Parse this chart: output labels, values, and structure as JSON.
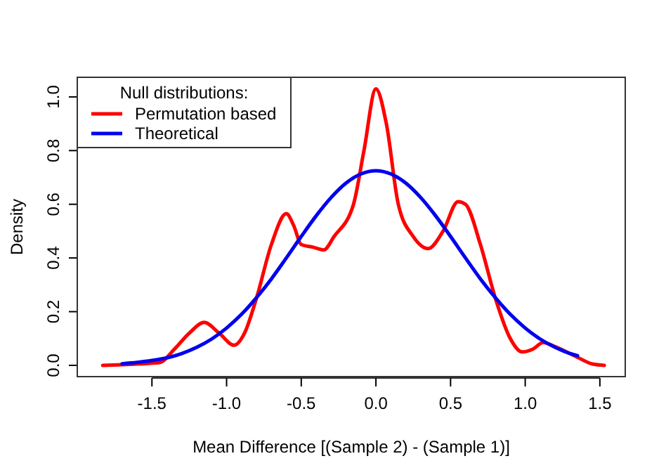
{
  "chart_data": {
    "type": "line",
    "xlabel": "Mean Difference [(Sample 2) - (Sample 1)]",
    "ylabel": "Density",
    "legend_title": "Null distributions:",
    "legend": "top left",
    "grid": false,
    "line_style": "solid",
    "xlim": [
      -2.0,
      1.67
    ],
    "ylim": [
      -0.042,
      1.073
    ],
    "xticks": [
      {
        "value": -1.5,
        "label": "-1.5"
      },
      {
        "value": -1.0,
        "label": "-1.0"
      },
      {
        "value": -0.5,
        "label": "-0.5"
      },
      {
        "value": 0,
        "label": "0.0"
      },
      {
        "value": 0.5,
        "label": "0.5"
      },
      {
        "value": 1.0,
        "label": "1.0"
      },
      {
        "value": 1.5,
        "label": "1.5"
      }
    ],
    "yticks": [
      {
        "value": 0,
        "label": "0.0"
      },
      {
        "value": 0.2,
        "label": "0.2"
      },
      {
        "value": 0.4,
        "label": "0.4"
      },
      {
        "value": 0.6,
        "label": "0.6"
      },
      {
        "value": 0.8,
        "label": "0.8"
      },
      {
        "value": 1.0,
        "label": "1.0"
      }
    ],
    "series": [
      {
        "name": "Permutation based",
        "color": "#ff0000",
        "x": [
          -1.83,
          -1.6,
          -1.45,
          -1.35,
          -1.25,
          -1.15,
          -1.05,
          -0.95,
          -0.88,
          -0.8,
          -0.7,
          -0.6,
          -0.55,
          -0.5,
          -0.42,
          -0.35,
          -0.28,
          -0.15,
          -0.08,
          0,
          0.07,
          0.15,
          0.25,
          0.35,
          0.45,
          0.55,
          0.6,
          0.7,
          0.8,
          0.9,
          0.98,
          1.05,
          1.12,
          1.2,
          1.35,
          1.45,
          1.53
        ],
        "values": [
          0,
          0.005,
          0.01,
          0.06,
          0.12,
          0.16,
          0.12,
          0.075,
          0.12,
          0.25,
          0.45,
          0.565,
          0.52,
          0.45,
          0.44,
          0.43,
          0.48,
          0.6,
          0.8,
          1.03,
          0.9,
          0.6,
          0.48,
          0.435,
          0.5,
          0.61,
          0.6,
          0.45,
          0.25,
          0.1,
          0.05,
          0.06,
          0.085,
          0.07,
          0.03,
          0.005,
          0
        ]
      },
      {
        "name": "Theoretical",
        "color": "#0000ee",
        "x": [
          -1.7,
          -1.6,
          -1.5,
          -1.4,
          -1.3,
          -1.2,
          -1.1,
          -1.0,
          -0.9,
          -0.8,
          -0.7,
          -0.6,
          -0.5,
          -0.4,
          -0.3,
          -0.2,
          -0.1,
          0,
          0.1,
          0.2,
          0.3,
          0.4,
          0.5,
          0.6,
          0.7,
          0.8,
          0.9,
          1.0,
          1.1,
          1.2,
          1.3,
          1.35
        ],
        "values": [
          0.006,
          0.011,
          0.018,
          0.028,
          0.044,
          0.067,
          0.098,
          0.139,
          0.19,
          0.252,
          0.322,
          0.4,
          0.48,
          0.557,
          0.625,
          0.679,
          0.713,
          0.725,
          0.713,
          0.679,
          0.625,
          0.557,
          0.48,
          0.4,
          0.322,
          0.252,
          0.19,
          0.139,
          0.098,
          0.067,
          0.044,
          0.036
        ]
      }
    ]
  }
}
